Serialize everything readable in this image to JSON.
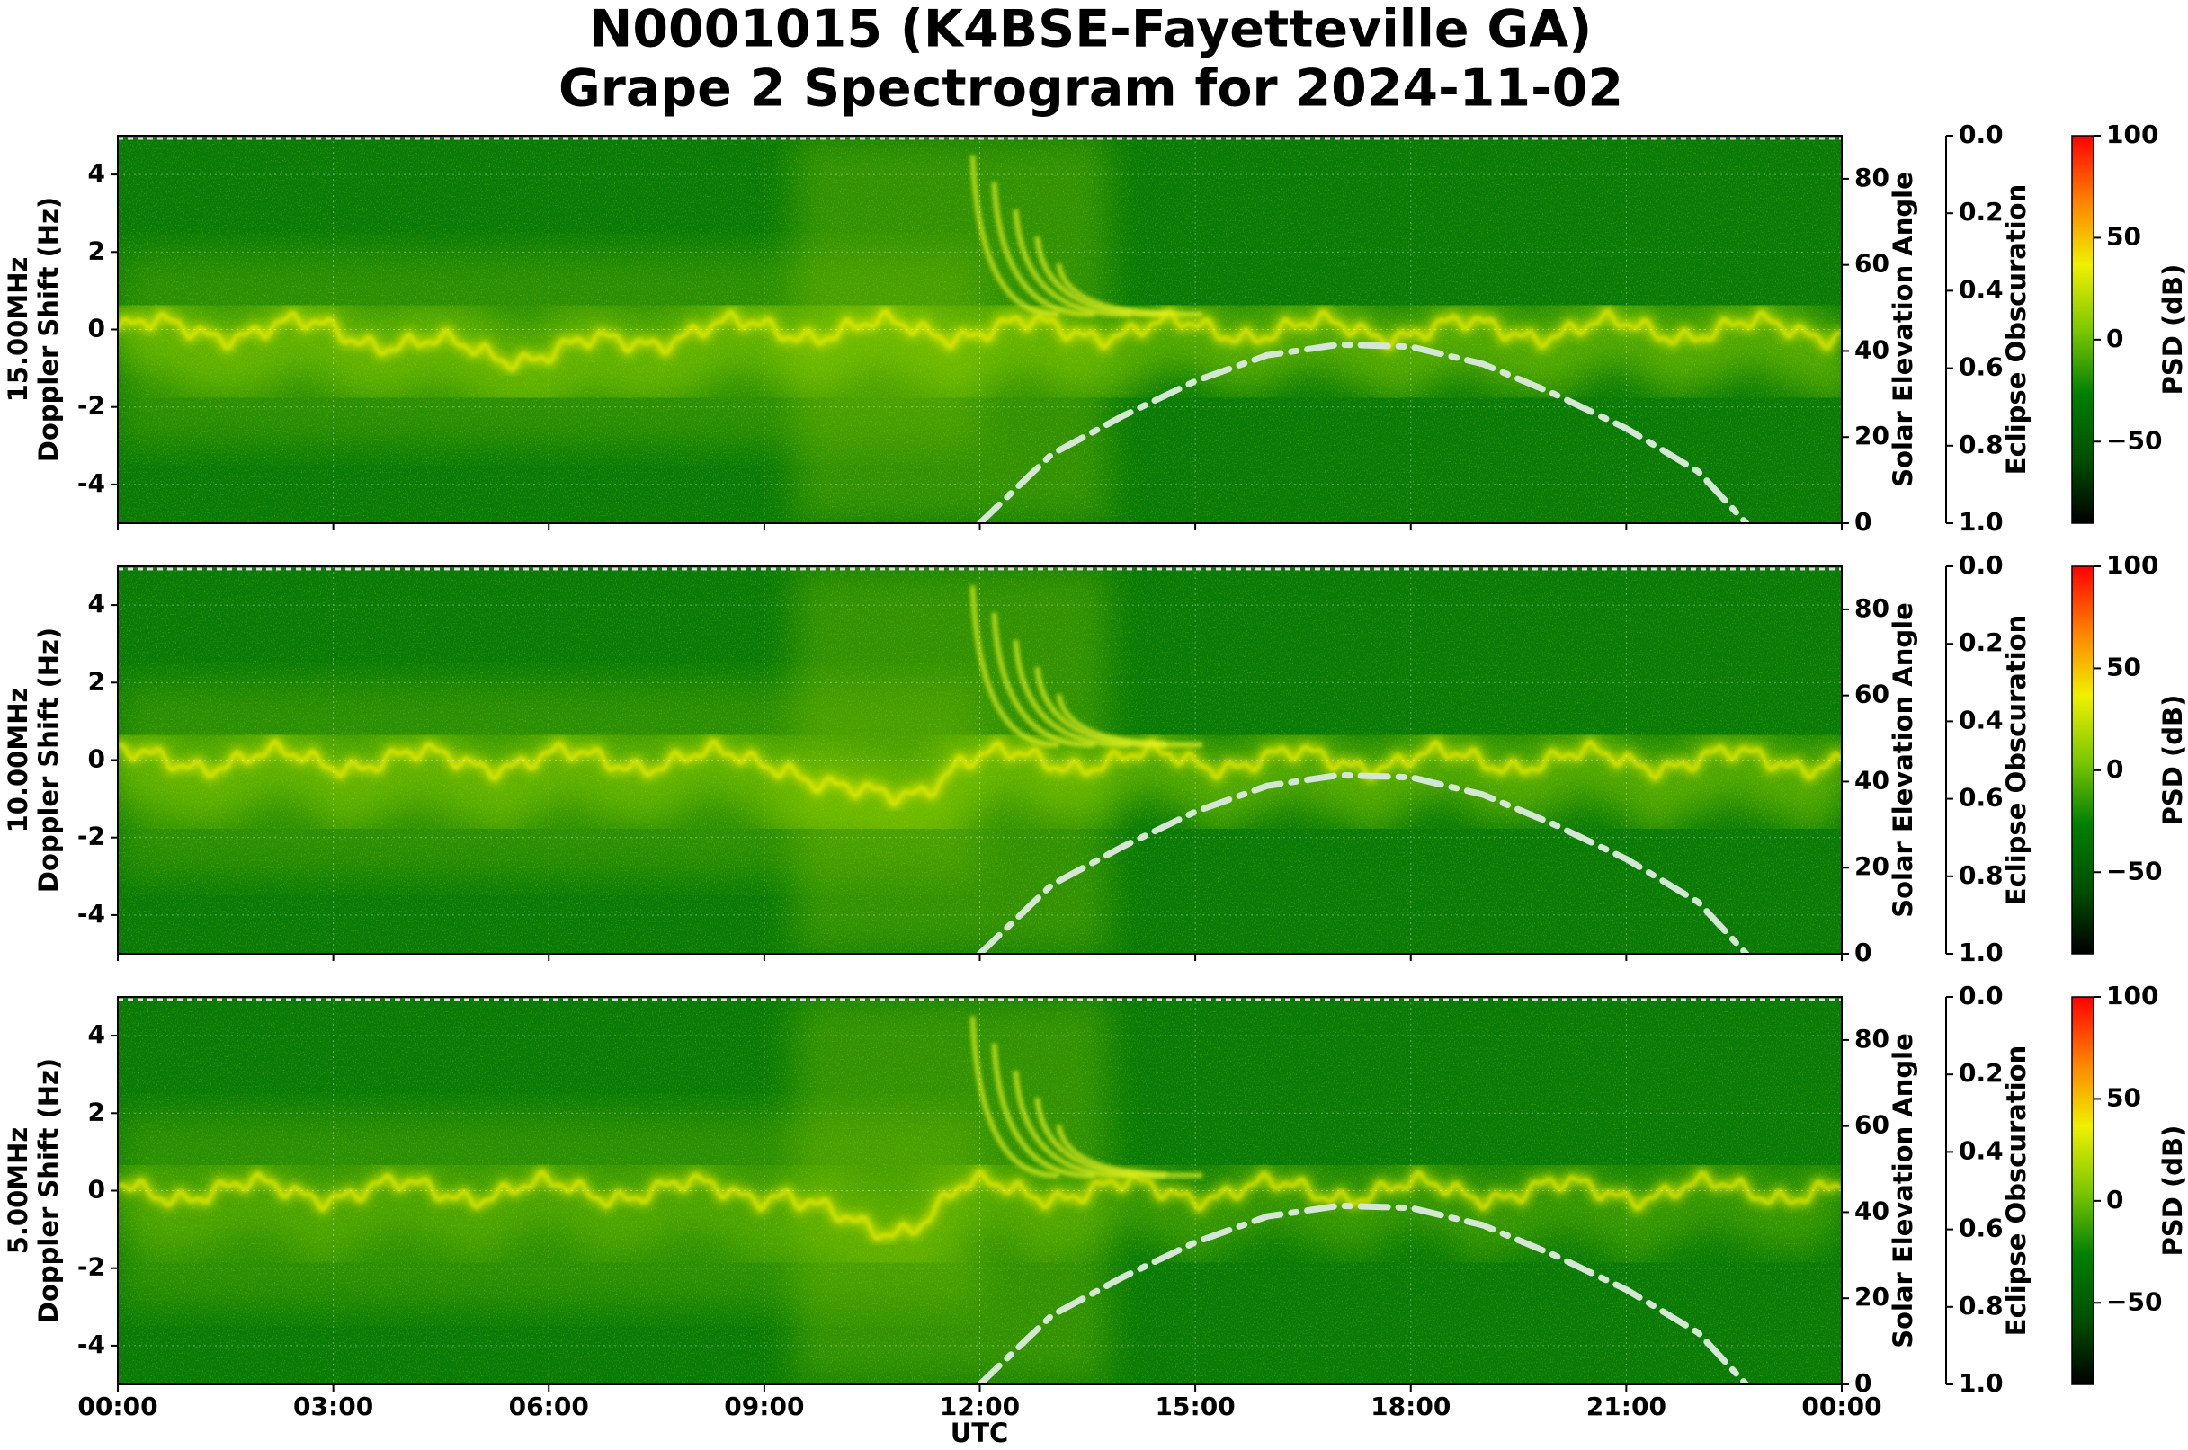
{
  "title": [
    "N0001015 (K4BSE-Fayetteville GA)",
    "Grape 2 Spectrogram for 2024-11-02"
  ],
  "xlabel": "UTC",
  "xlim": [
    0,
    24
  ],
  "xticks": [
    {
      "value": 0,
      "label": "00:00"
    },
    {
      "value": 3,
      "label": "03:00"
    },
    {
      "value": 6,
      "label": "06:00"
    },
    {
      "value": 9,
      "label": "09:00"
    },
    {
      "value": 12,
      "label": "12:00"
    },
    {
      "value": 15,
      "label": "15:00"
    },
    {
      "value": 18,
      "label": "18:00"
    },
    {
      "value": 21,
      "label": "21:00"
    },
    {
      "value": 24,
      "label": "00:00"
    }
  ],
  "chart_data": [
    {
      "type": "spectrogram",
      "ylabel": [
        "15.00MHz",
        "Doppler Shift (Hz)"
      ],
      "ylim": [
        -5,
        5
      ],
      "yticks": [
        -4,
        -2,
        0,
        2,
        4
      ],
      "grid": true,
      "y2label": "Solar Elevation Angle",
      "y2lim": [
        0,
        90
      ],
      "y2ticks": [
        0,
        20,
        40,
        60,
        80
      ],
      "y3label": "Eclipse Obscuration",
      "y3lim": [
        1,
        0
      ],
      "y3ticks": [
        {
          "value": 0,
          "label": "0.0"
        },
        {
          "value": 0.2,
          "label": "0.2"
        },
        {
          "value": 0.4,
          "label": "0.4"
        },
        {
          "value": 0.6,
          "label": "0.6"
        },
        {
          "value": 0.8,
          "label": "0.8"
        },
        {
          "value": 1,
          "label": "1.0"
        }
      ],
      "colorbar": {
        "label": "PSD (dB)",
        "lim": [
          -90,
          100
        ],
        "ticks": [
          {
            "value": -50,
            "label": "−50"
          },
          0,
          50,
          100
        ],
        "colors": [
          "#000000",
          "#005000",
          "#008000",
          "#7ec800",
          "#f0f000",
          "#ff8000",
          "#ff0000"
        ]
      },
      "elevation": {
        "axis": "y2",
        "color": "#d4e6d4",
        "x": [
          12,
          13,
          14,
          15,
          16,
          17,
          18,
          19,
          20,
          21,
          22,
          22.67
        ],
        "values": [
          0,
          16,
          25,
          33,
          39,
          41.5,
          41,
          37,
          30,
          22,
          12,
          0
        ]
      }
    },
    {
      "type": "spectrogram",
      "ylabel": [
        "10.00MHz",
        "Doppler Shift (Hz)"
      ],
      "ylim": [
        -5,
        5
      ],
      "yticks": [
        -4,
        -2,
        0,
        2,
        4
      ],
      "grid": true,
      "y2label": "Solar Elevation Angle",
      "y2lim": [
        0,
        90
      ],
      "y2ticks": [
        0,
        20,
        40,
        60,
        80
      ],
      "y3label": "Eclipse Obscuration",
      "y3lim": [
        1,
        0
      ],
      "y3ticks": [
        {
          "value": 0,
          "label": "0.0"
        },
        {
          "value": 0.2,
          "label": "0.2"
        },
        {
          "value": 0.4,
          "label": "0.4"
        },
        {
          "value": 0.6,
          "label": "0.6"
        },
        {
          "value": 0.8,
          "label": "0.8"
        },
        {
          "value": 1,
          "label": "1.0"
        }
      ],
      "colorbar": {
        "label": "PSD (dB)",
        "lim": [
          -90,
          100
        ],
        "ticks": [
          {
            "value": -50,
            "label": "−50"
          },
          0,
          50,
          100
        ],
        "colors": [
          "#000000",
          "#005000",
          "#008000",
          "#7ec800",
          "#f0f000",
          "#ff8000",
          "#ff0000"
        ]
      },
      "elevation": {
        "axis": "y2",
        "color": "#d4e6d4",
        "x": [
          12,
          13,
          14,
          15,
          16,
          17,
          18,
          19,
          20,
          21,
          22,
          22.67
        ],
        "values": [
          0,
          16,
          25,
          33,
          39,
          41.5,
          41,
          37,
          30,
          22,
          12,
          0
        ]
      }
    },
    {
      "type": "spectrogram",
      "ylabel": [
        "5.00MHz",
        "Doppler Shift (Hz)"
      ],
      "ylim": [
        -5,
        5
      ],
      "yticks": [
        -4,
        -2,
        0,
        2,
        4
      ],
      "grid": true,
      "y2label": "Solar Elevation Angle",
      "y2lim": [
        0,
        90
      ],
      "y2ticks": [
        0,
        20,
        40,
        60,
        80
      ],
      "y3label": "Eclipse Obscuration",
      "y3lim": [
        1,
        0
      ],
      "y3ticks": [
        {
          "value": 0,
          "label": "0.0"
        },
        {
          "value": 0.2,
          "label": "0.2"
        },
        {
          "value": 0.4,
          "label": "0.4"
        },
        {
          "value": 0.6,
          "label": "0.6"
        },
        {
          "value": 0.8,
          "label": "0.8"
        },
        {
          "value": 1,
          "label": "1.0"
        }
      ],
      "colorbar": {
        "label": "PSD (dB)",
        "lim": [
          -90,
          100
        ],
        "ticks": [
          {
            "value": -50,
            "label": "−50"
          },
          0,
          50,
          100
        ],
        "colors": [
          "#000000",
          "#005000",
          "#008000",
          "#7ec800",
          "#f0f000",
          "#ff8000",
          "#ff0000"
        ]
      },
      "elevation": {
        "axis": "y2",
        "color": "#d4e6d4",
        "x": [
          12,
          13,
          14,
          15,
          16,
          17,
          18,
          19,
          20,
          21,
          22,
          22.67
        ],
        "values": [
          0,
          16,
          25,
          33,
          39,
          41.5,
          41,
          37,
          30,
          22,
          12,
          0
        ]
      }
    }
  ]
}
